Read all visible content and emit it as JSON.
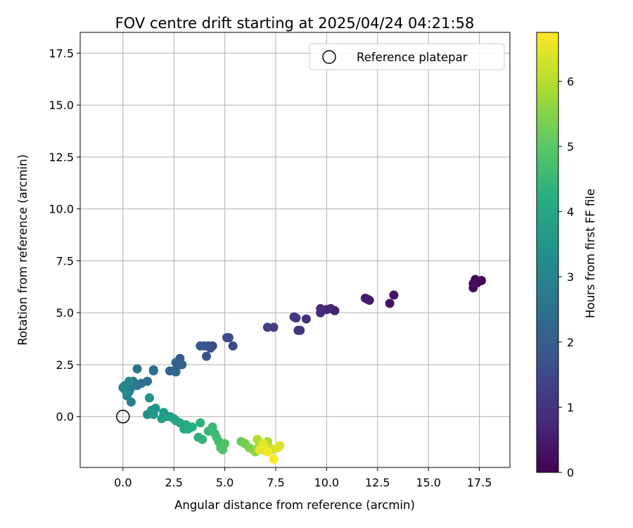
{
  "chart_data": {
    "type": "scatter",
    "title": "FOV centre drift starting at 2025/04/24 04:21:58",
    "xlabel": "Angular distance from reference (arcmin)",
    "ylabel": "Rotation from reference (arcmin)",
    "xlim": [
      -2.1,
      19.0
    ],
    "ylim": [
      -2.45,
      18.5
    ],
    "x_ticks": [
      "0.0",
      "2.5",
      "5.0",
      "7.5",
      "10.0",
      "12.5",
      "15.0",
      "17.5"
    ],
    "y_ticks": [
      "0.0",
      "2.5",
      "5.0",
      "7.5",
      "10.0",
      "12.5",
      "15.0",
      "17.5"
    ],
    "grid": true,
    "legend": {
      "position": "top-right",
      "entries": [
        "Reference platepar"
      ]
    },
    "reference_point": {
      "x": 0.0,
      "y": 0.0
    },
    "colorbar": {
      "label": "Hours from first FF file",
      "range": [
        0,
        6.75
      ],
      "ticks": [
        "0",
        "1",
        "2",
        "3",
        "4",
        "5",
        "6"
      ],
      "colormap": "viridis"
    },
    "points": {
      "x": [
        17.6,
        17.4,
        17.3,
        17.2,
        17.2,
        13.3,
        13.1,
        12.1,
        12.0,
        11.9,
        10.4,
        10.2,
        10.0,
        9.7,
        9.7,
        9.0,
        8.7,
        8.6,
        8.5,
        8.4,
        7.4,
        7.1,
        5.4,
        5.2,
        5.1,
        4.4,
        4.3,
        4.2,
        4.1,
        4.0,
        3.8,
        2.8,
        2.9,
        2.8,
        2.6,
        2.5,
        2.3,
        2.6,
        1.5,
        1.5,
        1.2,
        0.9,
        0.7,
        0.7,
        0.5,
        0.4,
        0.3,
        0.4,
        0.2,
        0.1,
        0.0,
        0.05,
        0.3,
        0.1,
        0.2,
        1.2,
        1.3,
        1.4,
        1.6,
        1.3,
        1.5,
        2.0,
        2.1,
        1.9,
        2.3,
        2.5,
        2.6,
        2.8,
        3.0,
        3.1,
        3.2,
        3.4,
        3.7,
        3.8,
        3.9,
        4.2,
        4.4,
        4.5,
        4.6,
        4.7,
        4.8,
        4.9,
        5.0,
        5.8,
        6.0,
        6.2,
        6.4,
        6.5,
        6.7,
        6.8,
        6.9,
        7.0,
        7.1,
        7.2,
        6.6,
        6.8,
        7.0,
        7.3,
        7.7,
        7.6,
        6.9,
        6.7,
        7.1,
        7.4
      ],
      "y": [
        6.55,
        6.45,
        6.6,
        6.2,
        6.4,
        5.85,
        5.45,
        5.6,
        5.65,
        5.7,
        5.1,
        5.2,
        5.15,
        5.0,
        5.2,
        4.7,
        4.15,
        4.15,
        4.75,
        4.8,
        4.3,
        4.3,
        3.4,
        3.8,
        3.8,
        3.4,
        3.3,
        3.4,
        2.9,
        3.4,
        3.4,
        2.8,
        2.5,
        2.5,
        2.6,
        2.2,
        2.2,
        2.15,
        2.25,
        2.2,
        1.7,
        1.6,
        1.5,
        2.3,
        1.7,
        1.4,
        1.2,
        0.7,
        1.0,
        1.3,
        1.4,
        1.45,
        1.7,
        1.5,
        1.1,
        0.1,
        0.9,
        0.3,
        0.4,
        0.9,
        0.1,
        0.2,
        0.0,
        -0.1,
        0.0,
        -0.1,
        -0.2,
        -0.3,
        -0.6,
        -0.4,
        -0.6,
        -0.5,
        -1.0,
        -0.3,
        -1.1,
        -0.7,
        -0.5,
        -0.8,
        -1.0,
        -1.2,
        -1.5,
        -1.6,
        -1.3,
        -1.2,
        -1.3,
        -1.5,
        -1.6,
        -1.7,
        -1.4,
        -1.5,
        -1.6,
        -1.4,
        -1.2,
        -1.5,
        -1.1,
        -1.3,
        -1.4,
        -1.6,
        -1.4,
        -1.5,
        -1.3,
        -1.6,
        -1.7,
        -2.05
      ],
      "hours": [
        0.0,
        0.05,
        0.1,
        0.15,
        0.2,
        0.3,
        0.35,
        0.45,
        0.5,
        0.55,
        0.65,
        0.7,
        0.75,
        0.8,
        0.85,
        0.95,
        1.0,
        1.05,
        1.1,
        1.15,
        1.25,
        1.3,
        1.45,
        1.5,
        1.55,
        1.6,
        1.65,
        1.7,
        1.75,
        1.8,
        1.85,
        2.0,
        2.05,
        2.1,
        2.15,
        2.2,
        2.25,
        2.3,
        2.4,
        2.45,
        2.5,
        2.55,
        2.6,
        2.65,
        2.7,
        2.75,
        2.8,
        2.85,
        2.9,
        2.95,
        3.0,
        3.05,
        3.1,
        3.15,
        3.2,
        3.35,
        3.4,
        3.45,
        3.5,
        3.55,
        3.6,
        3.7,
        3.75,
        3.8,
        3.85,
        3.9,
        3.95,
        4.0,
        4.05,
        4.1,
        4.15,
        4.2,
        4.3,
        4.35,
        4.4,
        4.5,
        4.55,
        4.6,
        4.65,
        4.7,
        4.8,
        4.85,
        4.9,
        5.2,
        5.3,
        5.4,
        5.5,
        5.6,
        5.7,
        5.75,
        5.8,
        5.85,
        5.9,
        5.95,
        6.0,
        6.1,
        6.2,
        6.3,
        6.4,
        6.45,
        6.5,
        6.55,
        6.65,
        6.75
      ]
    }
  }
}
